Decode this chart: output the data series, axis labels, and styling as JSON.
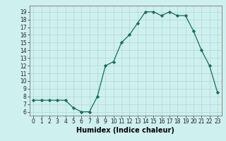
{
  "x": [
    0,
    1,
    2,
    3,
    4,
    5,
    6,
    7,
    8,
    9,
    10,
    11,
    12,
    13,
    14,
    15,
    16,
    17,
    18,
    19,
    20,
    21,
    22,
    23
  ],
  "y": [
    7.5,
    7.5,
    7.5,
    7.5,
    7.5,
    6.5,
    6.0,
    6.0,
    8.0,
    12.0,
    12.5,
    15.0,
    16.0,
    17.5,
    19.0,
    19.0,
    18.5,
    19.0,
    18.5,
    18.5,
    16.5,
    14.0,
    12.0,
    8.5
  ],
  "xlabel": "Humidex (Indice chaleur)",
  "xticks": [
    0,
    1,
    2,
    3,
    4,
    5,
    6,
    7,
    8,
    9,
    10,
    11,
    12,
    13,
    14,
    15,
    16,
    17,
    18,
    19,
    20,
    21,
    22,
    23
  ],
  "yticks": [
    6,
    7,
    8,
    9,
    10,
    11,
    12,
    13,
    14,
    15,
    16,
    17,
    18,
    19
  ],
  "ylim": [
    5.5,
    19.8
  ],
  "xlim": [
    -0.5,
    23.5
  ],
  "line_color": "#1a6b5a",
  "marker": "D",
  "markersize": 2.2,
  "bg_color": "#cef0ef",
  "grid_color": "#aed8d8",
  "tick_fontsize": 5.5,
  "xlabel_fontsize": 7.0
}
